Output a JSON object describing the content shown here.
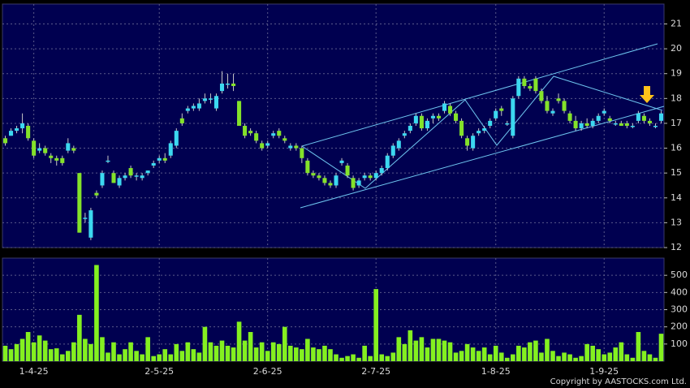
{
  "chart_data": [
    {
      "type": "candlestick",
      "open": [
        16.4,
        16.5,
        16.7,
        16.8,
        16.9,
        16.3,
        15.9,
        16.0,
        15.7,
        15.6,
        15.6,
        15.9,
        16.0,
        15.0,
        13.2,
        12.4,
        14.2,
        14.5,
        15.5,
        15.0,
        14.5,
        14.8,
        15.2,
        14.9,
        14.8,
        15.0,
        15.3,
        15.5,
        15.6,
        15.7,
        16.1,
        17.2,
        17.5,
        17.6,
        17.6,
        17.9,
        18.0,
        17.6,
        18.3,
        18.6,
        18.6,
        17.9,
        16.9,
        16.7,
        16.6,
        16.2,
        16.1,
        16.5,
        16.7,
        16.4,
        16.0,
        16.1,
        16.0,
        15.5,
        15.0,
        14.9,
        14.8,
        14.6,
        14.5,
        15.4,
        15.3,
        14.8,
        14.5,
        14.8,
        14.9,
        14.8,
        15.0,
        15.2,
        15.7,
        16.0,
        16.5,
        16.7,
        17.0,
        17.3,
        16.8,
        17.2,
        17.3,
        17.5,
        17.7,
        17.4,
        17.1,
        16.4,
        16.0,
        16.6,
        16.7,
        16.9,
        17.2,
        17.6,
        17.0,
        16.5,
        18.1,
        18.8,
        18.5,
        18.8,
        18.3,
        17.9,
        17.4,
        18.0,
        17.9,
        17.4,
        17.1,
        16.8,
        17.0,
        16.9,
        17.1,
        17.4,
        17.2,
        17.0,
        17.0,
        17.0,
        16.9,
        17.1,
        17.3,
        17.1,
        16.9,
        17.1
      ],
      "high": [
        16.5,
        16.8,
        16.9,
        17.4,
        17.0,
        16.4,
        16.2,
        16.1,
        15.8,
        15.7,
        15.7,
        16.4,
        16.1,
        15.0,
        13.4,
        13.6,
        14.3,
        15.1,
        15.7,
        15.1,
        14.9,
        15.0,
        15.3,
        15.0,
        15.0,
        15.1,
        15.5,
        15.7,
        15.8,
        16.3,
        16.8,
        17.4,
        17.7,
        17.8,
        18.0,
        18.2,
        18.2,
        18.2,
        19.1,
        19.0,
        19.0,
        17.9,
        17.0,
        16.8,
        16.7,
        16.3,
        16.3,
        16.7,
        16.8,
        16.5,
        16.2,
        16.2,
        16.1,
        15.6,
        15.1,
        15.0,
        14.9,
        14.7,
        15.0,
        15.6,
        15.4,
        14.9,
        14.8,
        15.0,
        15.0,
        15.1,
        15.3,
        15.8,
        16.2,
        16.4,
        16.7,
        17.0,
        17.4,
        17.4,
        17.2,
        17.4,
        17.4,
        17.9,
        17.8,
        17.5,
        17.2,
        16.5,
        16.6,
        16.8,
        16.9,
        17.2,
        17.6,
        17.7,
        17.1,
        18.1,
        18.9,
        18.9,
        18.6,
        18.9,
        18.4,
        18.1,
        17.6,
        18.2,
        18.0,
        17.5,
        17.3,
        17.1,
        17.2,
        17.2,
        17.4,
        17.6,
        17.3,
        17.1,
        17.1,
        17.1,
        17.0,
        17.5,
        17.4,
        17.2,
        17.0,
        17.5
      ],
      "low": [
        16.1,
        16.5,
        16.6,
        16.6,
        16.3,
        15.6,
        15.8,
        15.7,
        15.4,
        15.3,
        15.3,
        15.8,
        15.8,
        12.6,
        13.0,
        12.3,
        14.0,
        14.4,
        15.4,
        14.6,
        14.4,
        14.7,
        14.8,
        14.7,
        14.7,
        14.9,
        15.2,
        15.4,
        15.4,
        15.6,
        16.0,
        16.9,
        17.4,
        17.5,
        17.5,
        17.8,
        17.8,
        17.5,
        18.2,
        18.4,
        18.3,
        16.9,
        16.4,
        16.5,
        16.2,
        15.9,
        16.0,
        16.4,
        16.4,
        16.2,
        15.9,
        15.9,
        15.4,
        14.9,
        14.8,
        14.7,
        14.5,
        14.4,
        14.4,
        15.3,
        14.8,
        14.3,
        14.4,
        14.7,
        14.7,
        14.7,
        14.9,
        15.1,
        15.6,
        15.9,
        16.4,
        16.6,
        16.9,
        16.7,
        16.7,
        17.0,
        17.1,
        17.4,
        17.3,
        17.0,
        16.4,
        15.9,
        15.9,
        16.5,
        16.6,
        16.8,
        17.1,
        17.3,
        16.9,
        16.4,
        18.0,
        18.4,
        18.3,
        18.2,
        17.8,
        17.4,
        17.3,
        17.8,
        17.4,
        17.0,
        16.7,
        16.7,
        16.8,
        16.8,
        17.0,
        17.3,
        17.0,
        16.9,
        16.9,
        16.8,
        16.8,
        17.0,
        17.0,
        16.9,
        16.8,
        17.0
      ],
      "close": [
        16.2,
        16.7,
        16.8,
        17.0,
        16.4,
        15.7,
        16.0,
        15.8,
        15.6,
        15.5,
        15.4,
        16.2,
        15.9,
        12.6,
        13.2,
        13.5,
        14.1,
        15.0,
        15.5,
        14.6,
        14.8,
        14.9,
        14.9,
        14.9,
        14.9,
        15.1,
        15.4,
        15.6,
        15.5,
        16.2,
        16.7,
        17.0,
        17.6,
        17.7,
        17.8,
        18.0,
        18.0,
        18.1,
        18.6,
        18.6,
        18.5,
        16.9,
        16.5,
        16.6,
        16.3,
        16.0,
        16.2,
        16.6,
        16.5,
        16.3,
        16.1,
        16.0,
        15.6,
        15.0,
        14.9,
        14.8,
        14.6,
        14.5,
        14.9,
        15.5,
        14.9,
        14.4,
        14.7,
        14.9,
        14.8,
        15.0,
        15.2,
        15.7,
        16.1,
        16.3,
        16.6,
        16.9,
        17.3,
        16.8,
        17.1,
        17.3,
        17.2,
        17.8,
        17.4,
        17.1,
        16.5,
        16.1,
        16.5,
        16.7,
        16.8,
        17.1,
        17.5,
        17.5,
        17.0,
        18.0,
        18.8,
        18.5,
        18.4,
        18.3,
        17.9,
        17.5,
        17.5,
        17.9,
        17.5,
        17.1,
        16.8,
        17.0,
        16.9,
        17.1,
        17.3,
        17.5,
        17.1,
        17.0,
        16.9,
        16.9,
        16.9,
        17.4,
        17.1,
        17.0,
        16.9,
        17.4
      ],
      "up_color": "#3cd8f0",
      "down_color": "#84e22a",
      "ylim": [
        12,
        21.8
      ],
      "yticks": [
        12,
        13,
        14,
        15,
        16,
        17,
        18,
        19,
        20,
        21
      ],
      "grid": true
    },
    {
      "type": "bar",
      "categories": [
        null,
        null,
        null,
        null,
        null,
        "1-4-25",
        null,
        null,
        null,
        null,
        null,
        null,
        null,
        null,
        null,
        null,
        null,
        null,
        null,
        null,
        null,
        null,
        null,
        null,
        null,
        null,
        null,
        "2-5-25",
        null,
        null,
        null,
        null,
        null,
        null,
        null,
        null,
        null,
        null,
        null,
        null,
        null,
        null,
        null,
        null,
        null,
        null,
        "2-6-25",
        null,
        null,
        null,
        null,
        null,
        null,
        null,
        null,
        null,
        null,
        null,
        null,
        null,
        null,
        null,
        null,
        null,
        null,
        "2-7-25",
        null,
        null,
        null,
        null,
        null,
        null,
        null,
        null,
        null,
        null,
        null,
        null,
        null,
        null,
        null,
        null,
        null,
        null,
        null,
        null,
        "1-8-25",
        null,
        null,
        null,
        null,
        null,
        null,
        null,
        null,
        null,
        null,
        null,
        null,
        null,
        null,
        null,
        null,
        null,
        null,
        "1-9-25",
        null,
        null,
        null,
        null,
        null,
        null,
        null,
        null,
        null,
        null
      ],
      "values": [
        90,
        70,
        100,
        130,
        170,
        110,
        150,
        120,
        70,
        75,
        40,
        60,
        110,
        270,
        130,
        100,
        560,
        140,
        50,
        110,
        40,
        70,
        110,
        60,
        40,
        140,
        30,
        40,
        70,
        40,
        100,
        60,
        110,
        70,
        50,
        200,
        110,
        90,
        120,
        90,
        80,
        230,
        120,
        170,
        80,
        110,
        60,
        110,
        100,
        200,
        90,
        80,
        70,
        130,
        80,
        70,
        90,
        70,
        40,
        20,
        30,
        40,
        20,
        90,
        30,
        420,
        40,
        30,
        50,
        140,
        100,
        180,
        120,
        140,
        80,
        130,
        130,
        120,
        110,
        50,
        60,
        100,
        80,
        60,
        80,
        40,
        90,
        50,
        20,
        40,
        90,
        80,
        110,
        120,
        50,
        130,
        60,
        30,
        50,
        40,
        20,
        30,
        100,
        90,
        70,
        40,
        50,
        80,
        110,
        40,
        20,
        170,
        60,
        40,
        20,
        160
      ],
      "color": "#84f020",
      "ylim": [
        0,
        600
      ],
      "yticks": [
        100,
        200,
        300,
        400,
        500
      ],
      "grid": true,
      "source": "Copyright by AASTOCKS.com Ltd."
    }
  ]
}
